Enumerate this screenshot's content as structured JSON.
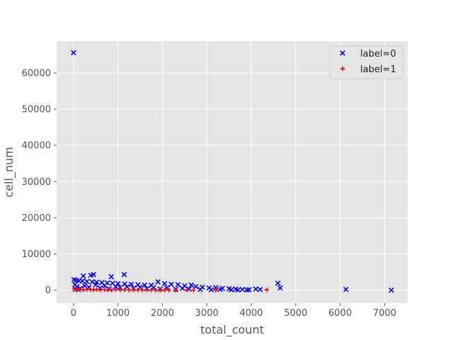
{
  "chart_data": {
    "type": "scatter",
    "title": "",
    "xlabel": "total_count",
    "ylabel": "cell_num",
    "xlim": [
      -380,
      7520
    ],
    "ylim": [
      -3600,
      68800
    ],
    "xticks": [
      0,
      1000,
      2000,
      3000,
      4000,
      5000,
      6000,
      7000
    ],
    "yticks": [
      0,
      10000,
      20000,
      30000,
      40000,
      50000,
      60000
    ],
    "grid": true,
    "legend": "top-right",
    "series": [
      {
        "name": "label=0",
        "marker": "x",
        "color": "#0000ff",
        "points": [
          [
            0,
            65600
          ],
          [
            220,
            3900
          ],
          [
            390,
            4100
          ],
          [
            450,
            4300
          ],
          [
            850,
            3700
          ],
          [
            1140,
            4300
          ],
          [
            10,
            2900
          ],
          [
            60,
            2700
          ],
          [
            120,
            2600
          ],
          [
            200,
            2500
          ],
          [
            300,
            2400
          ],
          [
            420,
            2300
          ],
          [
            520,
            2200
          ],
          [
            640,
            2100
          ],
          [
            760,
            2000
          ],
          [
            880,
            1900
          ],
          [
            1000,
            1800
          ],
          [
            1150,
            1700
          ],
          [
            1300,
            1600
          ],
          [
            1450,
            1500
          ],
          [
            1600,
            1400
          ],
          [
            1750,
            1350
          ],
          [
            1900,
            2300
          ],
          [
            2050,
            1800
          ],
          [
            2200,
            1600
          ],
          [
            2350,
            1500
          ],
          [
            2500,
            1200
          ],
          [
            2650,
            1400
          ],
          [
            2750,
            1000
          ],
          [
            2900,
            800
          ],
          [
            3050,
            600
          ],
          [
            3200,
            700
          ],
          [
            3350,
            500
          ],
          [
            3500,
            400
          ],
          [
            3650,
            300
          ],
          [
            3800,
            200
          ],
          [
            3950,
            100
          ],
          [
            4100,
            300
          ],
          [
            4200,
            200
          ],
          [
            4600,
            1900
          ],
          [
            4650,
            600
          ],
          [
            6130,
            200
          ],
          [
            7150,
            0
          ],
          [
            30,
            1500
          ],
          [
            80,
            1000
          ],
          [
            150,
            500
          ],
          [
            250,
            1200
          ],
          [
            350,
            800
          ],
          [
            500,
            1500
          ],
          [
            600,
            600
          ],
          [
            700,
            1200
          ],
          [
            800,
            400
          ],
          [
            950,
            1000
          ],
          [
            1050,
            700
          ],
          [
            1200,
            900
          ],
          [
            1350,
            500
          ],
          [
            1500,
            800
          ],
          [
            1650,
            400
          ],
          [
            1800,
            700
          ],
          [
            1950,
            300
          ],
          [
            2100,
            600
          ],
          [
            2300,
            200
          ],
          [
            2450,
            500
          ],
          [
            2600,
            300
          ],
          [
            2850,
            200
          ],
          [
            3100,
            100
          ],
          [
            3300,
            200
          ],
          [
            3550,
            100
          ],
          [
            3700,
            50
          ],
          [
            3900,
            50
          ],
          [
            40,
            200
          ],
          [
            110,
            100
          ]
        ]
      },
      {
        "name": "label=1",
        "marker": "+",
        "color": "#ff0000",
        "points": [
          [
            20,
            300
          ],
          [
            80,
            150
          ],
          [
            140,
            250
          ],
          [
            220,
            100
          ],
          [
            300,
            200
          ],
          [
            380,
            120
          ],
          [
            450,
            80
          ],
          [
            520,
            180
          ],
          [
            600,
            60
          ],
          [
            700,
            140
          ],
          [
            780,
            90
          ],
          [
            860,
            40
          ],
          [
            950,
            120
          ],
          [
            1050,
            60
          ],
          [
            1150,
            100
          ],
          [
            1250,
            30
          ],
          [
            1350,
            80
          ],
          [
            1450,
            50
          ],
          [
            1550,
            20
          ],
          [
            1650,
            60
          ],
          [
            1750,
            30
          ],
          [
            1850,
            10
          ],
          [
            1950,
            40
          ],
          [
            2050,
            20
          ],
          [
            2150,
            10
          ],
          [
            2300,
            5
          ],
          [
            2550,
            10
          ],
          [
            2700,
            5
          ],
          [
            3200,
            5
          ],
          [
            4350,
            100
          ]
        ]
      }
    ]
  }
}
